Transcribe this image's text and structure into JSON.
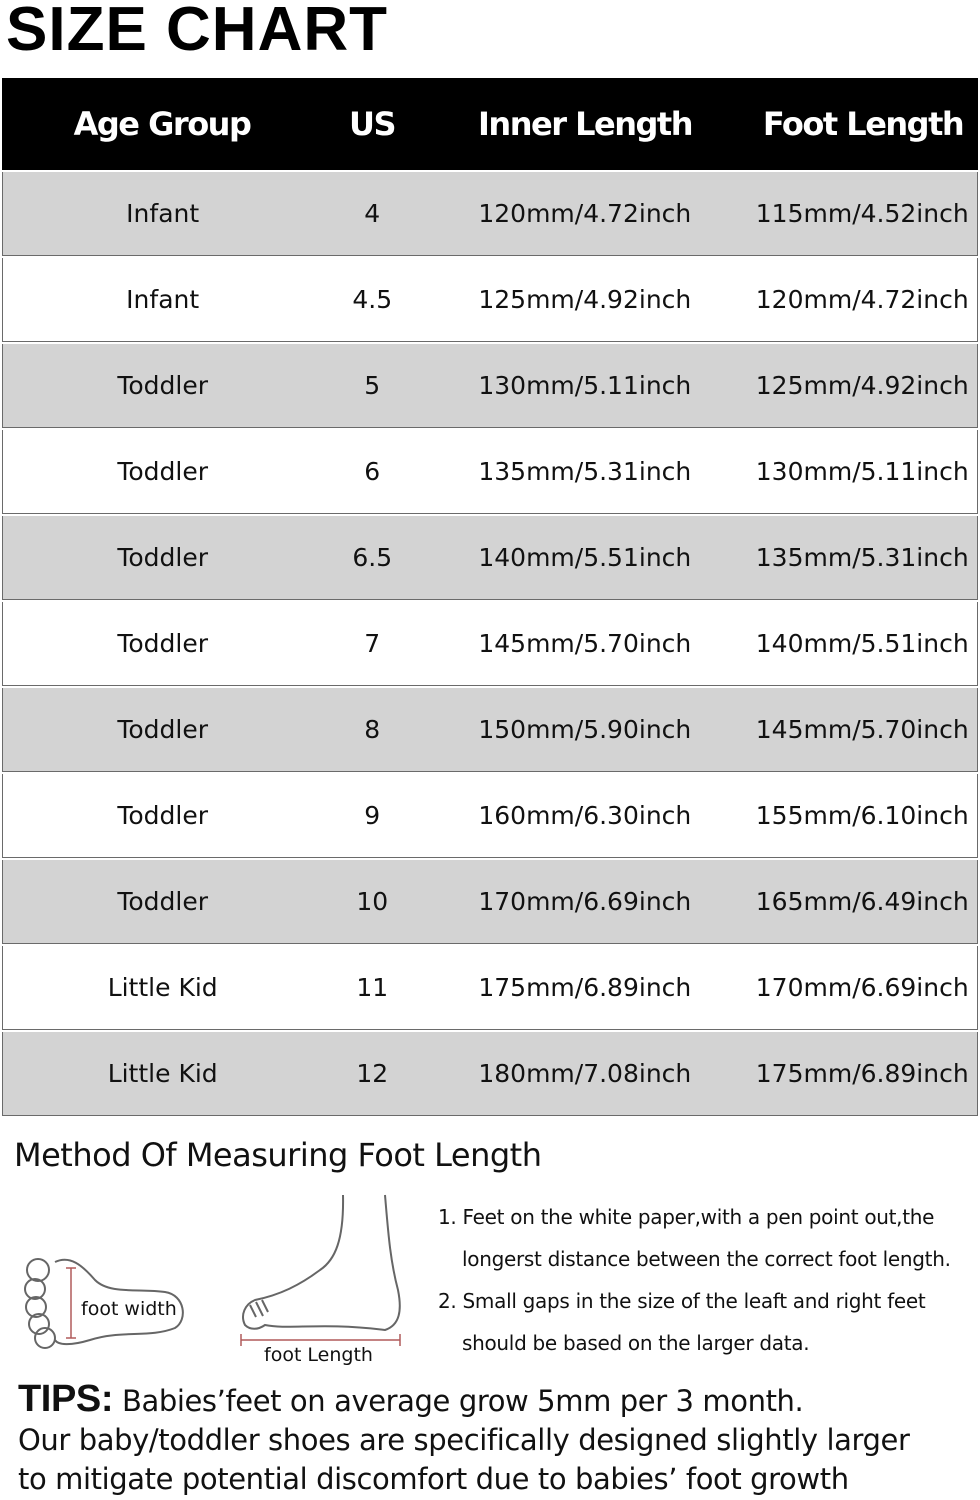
{
  "title": "SIZE CHART",
  "table": {
    "headers": [
      "Age Group",
      "US",
      "Inner Length",
      "Foot Length"
    ],
    "rows": [
      [
        "Infant",
        "4",
        "120mm/4.72inch",
        "115mm/4.52inch"
      ],
      [
        "Infant",
        "4.5",
        "125mm/4.92inch",
        "120mm/4.72inch"
      ],
      [
        "Toddler",
        "5",
        "130mm/5.11inch",
        "125mm/4.92inch"
      ],
      [
        "Toddler",
        "6",
        "135mm/5.31inch",
        "130mm/5.11inch"
      ],
      [
        "Toddler",
        "6.5",
        "140mm/5.51inch",
        "135mm/5.31inch"
      ],
      [
        "Toddler",
        "7",
        "145mm/5.70inch",
        "140mm/5.51inch"
      ],
      [
        "Toddler",
        "8",
        "150mm/5.90inch",
        "145mm/5.70inch"
      ],
      [
        "Toddler",
        "9",
        "160mm/6.30inch",
        "155mm/6.10inch"
      ],
      [
        "Toddler",
        "10",
        "170mm/6.69inch",
        "165mm/6.49inch"
      ],
      [
        "Little Kid",
        "11",
        "175mm/6.89inch",
        "170mm/6.69inch"
      ],
      [
        "Little Kid",
        "12",
        "180mm/7.08inch",
        "175mm/6.89inch"
      ]
    ]
  },
  "method": {
    "title": "Method Of Measuring Foot Length",
    "foot_width_label": "foot width",
    "foot_length_label": "foot Length",
    "notes": [
      "1. Feet on the white paper,with a pen point out,the",
      "longerst distance between the correct foot length.",
      "2. Small gaps in the size of the leaft and right feet",
      "should be based on the larger data."
    ]
  },
  "tips": {
    "label": "TIPS:",
    "line1": "Babies’feet on average grow 5mm per 3 month.",
    "line2": "Our baby/toddler shoes are specifically designed slightly larger",
    "line3": "to mitigate potential discomfort due to babies’ foot growth"
  },
  "colors": {
    "header_bg": "#000000",
    "row_gray": "#d3d3d3",
    "measure_line": "#b05a5a"
  }
}
